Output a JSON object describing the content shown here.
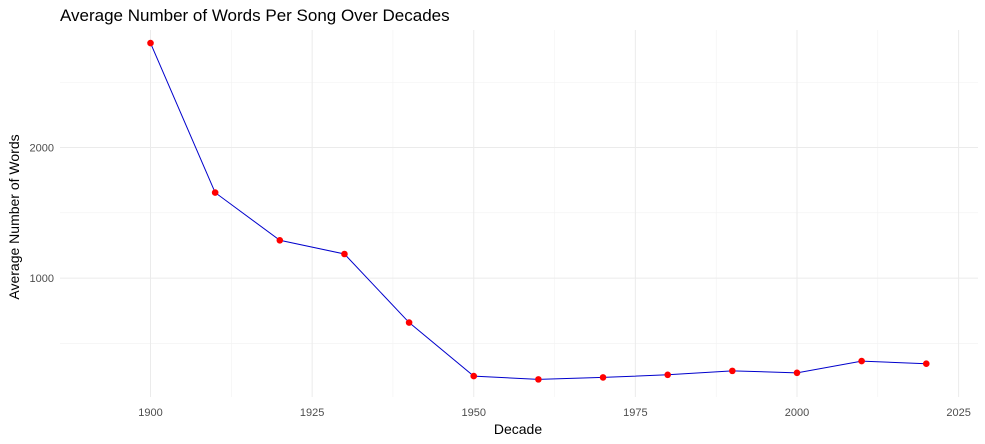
{
  "chart_data": {
    "type": "line",
    "title": "Average Number of Words Per Song Over Decades",
    "xlabel": "Decade",
    "ylabel": "Average Number of Words",
    "x": [
      1900,
      1910,
      1920,
      1930,
      1940,
      1950,
      1960,
      1970,
      1980,
      1990,
      2000,
      2010,
      2020
    ],
    "series": [
      {
        "values": [
          2800,
          1655,
          1290,
          1185,
          660,
          250,
          225,
          240,
          260,
          290,
          275,
          365,
          345
        ],
        "line_color": "#0000cc",
        "point_color": "#ff0000"
      }
    ],
    "xlim": [
      1886,
      2028
    ],
    "ylim": [
      90,
      2900
    ],
    "x_ticks": [
      1900,
      1925,
      1950,
      1975,
      2000,
      2025
    ],
    "y_ticks": [
      1000,
      2000
    ],
    "grid": true,
    "legend": "none"
  }
}
